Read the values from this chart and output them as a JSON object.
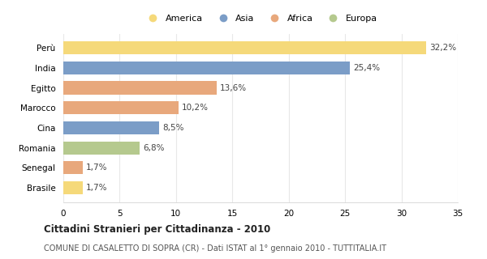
{
  "categories": [
    "Brasile",
    "Senegal",
    "Romania",
    "Cina",
    "Marocco",
    "Egitto",
    "India",
    "Perù"
  ],
  "values": [
    1.7,
    1.7,
    6.8,
    8.5,
    10.2,
    13.6,
    25.4,
    32.2
  ],
  "bar_colors": [
    "#f5d97a",
    "#e8a87c",
    "#b5c98e",
    "#7b9dc7",
    "#e8a87c",
    "#e8a87c",
    "#7b9dc7",
    "#f5d97a"
  ],
  "legend_labels": [
    "America",
    "Asia",
    "Africa",
    "Europa"
  ],
  "legend_colors": [
    "#f5d97a",
    "#7b9dc7",
    "#e8a87c",
    "#b5c98e"
  ],
  "title": "Cittadini Stranieri per Cittadinanza - 2010",
  "subtitle": "COMUNE DI CASALETTO DI SOPRA (CR) - Dati ISTAT al 1° gennaio 2010 - TUTTITALIA.IT",
  "xlim": [
    0,
    35
  ],
  "xticks": [
    0,
    5,
    10,
    15,
    20,
    25,
    30,
    35
  ],
  "background_color": "#ffffff",
  "grid_color": "#e8e8e8"
}
